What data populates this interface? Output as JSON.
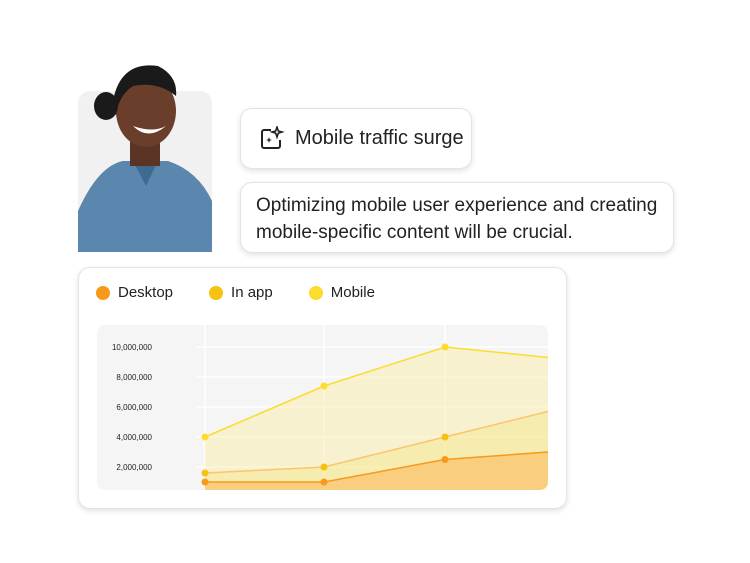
{
  "insight": {
    "title": "Mobile traffic surge",
    "icon": "sparkle-frame-icon",
    "description_lines": [
      "Optimizing mobile user experience and creating",
      "mobile-specific content will be crucial."
    ]
  },
  "chart_data": {
    "type": "area",
    "legend": [
      {
        "name": "Desktop",
        "color": "#f79a1a"
      },
      {
        "name": "In app",
        "color": "#f5c211"
      },
      {
        "name": "Mobile",
        "color": "#fcdc2e"
      }
    ],
    "legend_placement": "top-left",
    "ylim": [
      0,
      10000000
    ],
    "yticks": [
      "2,000,000",
      "4,000,000",
      "6,000,000",
      "8,000,000",
      "10,000,000"
    ],
    "ytick_values": [
      2000000,
      4000000,
      6000000,
      8000000,
      10000000
    ],
    "grid": true,
    "series": [
      {
        "name": "Desktop",
        "values": [
          1000000,
          1000000,
          2500000,
          3000000
        ]
      },
      {
        "name": "In app",
        "values": [
          1600000,
          2000000,
          4000000,
          5700000
        ]
      },
      {
        "name": "Mobile",
        "values": [
          4000000,
          7400000,
          10000000,
          9300000
        ]
      }
    ]
  }
}
